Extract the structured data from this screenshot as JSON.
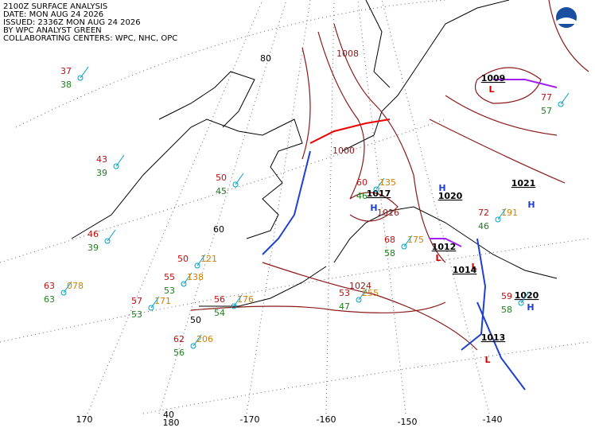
{
  "header": {
    "lines": [
      "2100Z SURFACE ANALYSIS",
      "DATE: MON AUG 24 2026",
      "ISSUED: 2336Z MON AUG 24 2026",
      "BY WPC ANALYST GREEN",
      "COLLABORATING CENTERS: WPC, NHC, OPC"
    ]
  },
  "graticule": {
    "labels": [
      "80",
      "60",
      "50",
      "40",
      "170",
      "180",
      "-170",
      "-160",
      "-150",
      "-140"
    ]
  },
  "isobars": {
    "labels": [
      "1008",
      "1000",
      "1016",
      "1024"
    ]
  },
  "centers": [
    {
      "symbol": "H",
      "pressure": "1017"
    },
    {
      "symbol": "H",
      "pressure": "1020"
    },
    {
      "symbol": "L",
      "pressure": "1009"
    },
    {
      "symbol": "L",
      "pressure": "1012"
    },
    {
      "symbol": "L",
      "pressure": "1014"
    },
    {
      "symbol": "L",
      "pressure": "1013"
    },
    {
      "symbol": "H",
      "pressure": "1021"
    },
    {
      "symbol": "H",
      "pressure": "1020"
    }
  ],
  "stations": [
    {
      "temp": "37",
      "dewpoint": "38"
    },
    {
      "temp": "43",
      "dewpoint": "39"
    },
    {
      "temp": "46",
      "dewpoint": "39"
    },
    {
      "temp": "63",
      "dewpoint": "63",
      "pressure": "078"
    },
    {
      "temp": "50",
      "dewpoint": "45"
    },
    {
      "temp": "50",
      "pressure": "121"
    },
    {
      "temp": "55",
      "dewpoint": "53",
      "pressure": "138"
    },
    {
      "temp": "57",
      "dewpoint": "53",
      "pressure": "171"
    },
    {
      "temp": "62",
      "dewpoint": "56",
      "pressure": "206"
    },
    {
      "temp": "56",
      "dewpoint": "54",
      "pressure": "176"
    },
    {
      "temp": "53",
      "dewpoint": "47",
      "pressure": "255"
    },
    {
      "temp": "60",
      "dewpoint": "46",
      "pressure": "135"
    },
    {
      "temp": "68",
      "dewpoint": "58",
      "pressure": "175"
    },
    {
      "temp": "59",
      "dewpoint": "58"
    },
    {
      "temp": "72",
      "dewpoint": "46",
      "pressure": "191"
    },
    {
      "temp": "77",
      "dewpoint": "57"
    }
  ]
}
